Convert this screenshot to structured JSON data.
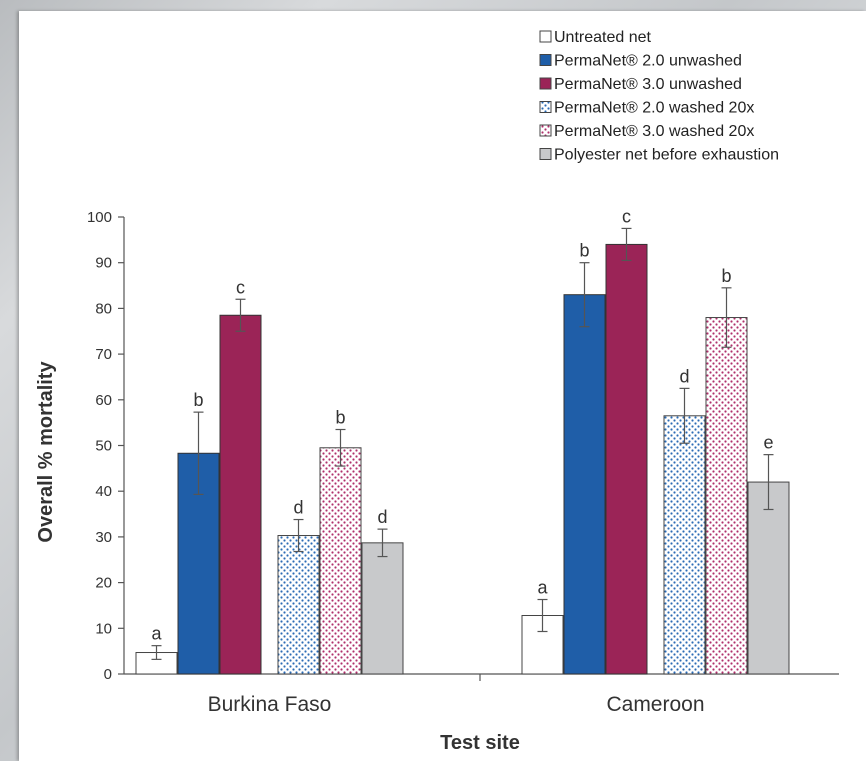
{
  "chart_data": {
    "type": "bar",
    "categories": [
      "Burkina Faso",
      "Cameroon"
    ],
    "xlabel": "Test site",
    "ylabel": "Overall % mortality",
    "ylim": [
      0,
      100
    ],
    "yticks": [
      0,
      10,
      20,
      30,
      40,
      50,
      60,
      70,
      80,
      90,
      100
    ],
    "legend_position": "top-right",
    "series": [
      {
        "name": "Untreated net",
        "values": [
          4.7,
          12.8
        ],
        "errors": [
          1.5,
          3.5
        ],
        "sig": [
          "a",
          "a"
        ],
        "color": "#ffffff",
        "pattern": "none"
      },
      {
        "name": "PermaNet® 2.0 unwashed",
        "values": [
          48.3,
          83.0
        ],
        "errors": [
          9.0,
          7.0
        ],
        "sig": [
          "b",
          "b"
        ],
        "color": "#1f5ea8",
        "pattern": "solid"
      },
      {
        "name": "PermaNet® 3.0 unwashed",
        "values": [
          78.5,
          94.0
        ],
        "errors": [
          3.5,
          3.5
        ],
        "sig": [
          "c",
          "c"
        ],
        "color": "#9b2457",
        "pattern": "solid"
      },
      {
        "name": "PermaNet® 2.0 washed 20x",
        "values": [
          30.3,
          56.5
        ],
        "errors": [
          3.5,
          6.0
        ],
        "sig": [
          "d",
          "d"
        ],
        "color": "#2c6bb5",
        "pattern": "dots"
      },
      {
        "name": "PermaNet® 3.0 washed 20x",
        "values": [
          49.5,
          78.0
        ],
        "errors": [
          4.0,
          6.5
        ],
        "sig": [
          "b",
          "b"
        ],
        "color": "#b0306b",
        "pattern": "dots"
      },
      {
        "name": "Polyester net before exhaustion",
        "values": [
          28.7,
          42.0
        ],
        "errors": [
          3.0,
          6.0
        ],
        "sig": [
          "d",
          "e"
        ],
        "color": "#c8c9cb",
        "pattern": "solid"
      }
    ]
  }
}
